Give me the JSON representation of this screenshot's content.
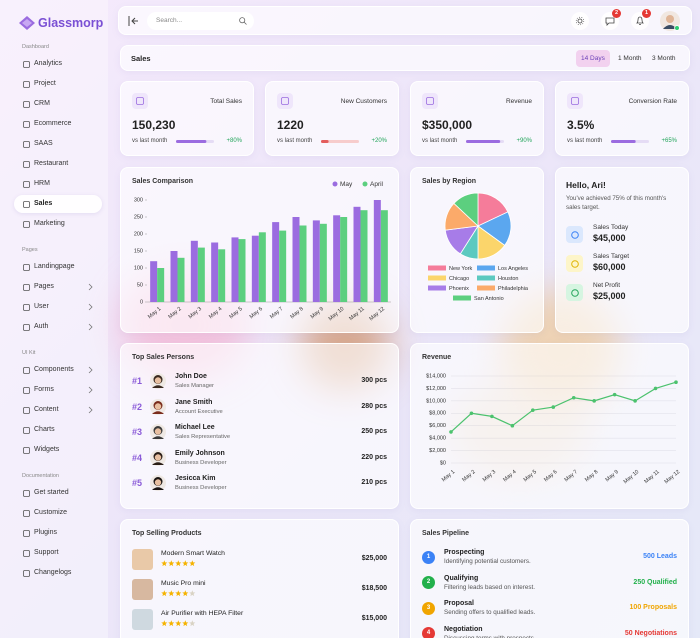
{
  "brand": "Glassmorp",
  "sidebar": {
    "sections": [
      {
        "title": "Dashboard",
        "items": [
          {
            "label": "Analytics"
          },
          {
            "label": "Project"
          },
          {
            "label": "CRM"
          },
          {
            "label": "Ecommerce"
          },
          {
            "label": "SAAS"
          },
          {
            "label": "Restaurant"
          },
          {
            "label": "HRM"
          },
          {
            "label": "Sales",
            "active": true
          },
          {
            "label": "Marketing"
          }
        ]
      },
      {
        "title": "Pages",
        "items": [
          {
            "label": "Landingpage"
          },
          {
            "label": "Pages",
            "expandable": true
          },
          {
            "label": "User",
            "expandable": true
          },
          {
            "label": "Auth",
            "expandable": true
          }
        ]
      },
      {
        "title": "UI Kit",
        "items": [
          {
            "label": "Components",
            "expandable": true
          },
          {
            "label": "Forms",
            "expandable": true
          },
          {
            "label": "Content",
            "expandable": true
          },
          {
            "label": "Charts"
          },
          {
            "label": "Widgets"
          }
        ]
      },
      {
        "title": "Documentation",
        "items": [
          {
            "label": "Get started"
          },
          {
            "label": "Customize"
          },
          {
            "label": "Plugins"
          },
          {
            "label": "Support"
          },
          {
            "label": "Changelogs"
          }
        ]
      }
    ]
  },
  "topbar": {
    "search_placeholder": "Search...",
    "badges": {
      "messages": 2,
      "alerts": 1
    }
  },
  "page_header": {
    "title": "Sales",
    "ranges": [
      "14 Days",
      "1 Month",
      "3 Month"
    ],
    "active_range": 0
  },
  "kpis": [
    {
      "title": "Total Sales",
      "value": "150,230",
      "caption": "vs last month",
      "change": "+80%",
      "progress": 80,
      "color": "#9b6ce0",
      "track": "#e5dcf5"
    },
    {
      "title": "New Customers",
      "value": "1220",
      "caption": "vs last month",
      "change": "+20%",
      "progress": 20,
      "color": "#e35d5d",
      "track": "#f7cccc"
    },
    {
      "title": "Revenue",
      "value": "$350,000",
      "caption": "vs last month",
      "change": "+90%",
      "progress": 90,
      "color": "#9b6ce0",
      "track": "#e5dcf5"
    },
    {
      "title": "Conversion Rate",
      "value": "3.5%",
      "caption": "vs last month",
      "change": "+65%",
      "progress": 65,
      "color": "#9b6ce0",
      "track": "#e5dcf5"
    }
  ],
  "sales_comparison": {
    "type": "bar",
    "title": "Sales Comparison",
    "categories": [
      "May 1",
      "May 2",
      "May 3",
      "May 4",
      "May 5",
      "May 6",
      "May 7",
      "May 8",
      "May 9",
      "May 10",
      "May 11",
      "May 12"
    ],
    "series": [
      {
        "name": "May",
        "color": "#9b6ce0",
        "values": [
          120,
          150,
          180,
          175,
          190,
          195,
          235,
          250,
          240,
          255,
          280,
          300
        ]
      },
      {
        "name": "April",
        "color": "#5ccf7f",
        "values": [
          100,
          130,
          160,
          155,
          185,
          205,
          210,
          225,
          230,
          250,
          270,
          270
        ]
      }
    ],
    "ylim": [
      0,
      300
    ],
    "yticks": [
      0,
      50,
      100,
      150,
      200,
      250,
      300
    ]
  },
  "sales_by_region": {
    "type": "pie",
    "title": "Sales by Region",
    "categories": [
      "New York",
      "Los Angeles",
      "Chicago",
      "Houston",
      "Phoenix",
      "Philadelphia",
      "San Antonio"
    ],
    "values": [
      18,
      17,
      15,
      9,
      14,
      14,
      13
    ],
    "colors": [
      "#f57c9a",
      "#5ba7ef",
      "#fbd56b",
      "#5cc9c0",
      "#a77ce8",
      "#fbaa6a",
      "#5ccf7f"
    ]
  },
  "greeting": {
    "title": "Hello, Ari!",
    "message": "You've achieved 75% of this month's sales target.",
    "stats": [
      {
        "label": "Sales Today",
        "value": "$45,000",
        "color": "#3b82f6",
        "bg": "#dbe8fd"
      },
      {
        "label": "Sales Target",
        "value": "$60,000",
        "color": "#e0b400",
        "bg": "#fdf5c9"
      },
      {
        "label": "Net Profit",
        "value": "$25,000",
        "color": "#22a55a",
        "bg": "#d6f5e1"
      }
    ]
  },
  "top_sales_persons": {
    "title": "Top Sales Persons",
    "rows": [
      {
        "rank": "#1",
        "name": "John Doe",
        "role": "Sales Manager",
        "sales": "300 pcs"
      },
      {
        "rank": "#2",
        "name": "Jane Smith",
        "role": "Account Executive",
        "sales": "280 pcs"
      },
      {
        "rank": "#3",
        "name": "Michael Lee",
        "role": "Sales Representative",
        "sales": "250 pcs"
      },
      {
        "rank": "#4",
        "name": "Emily Johnson",
        "role": "Business Developer",
        "sales": "220 pcs"
      },
      {
        "rank": "#5",
        "name": "Jesicca Kim",
        "role": "Business Developer",
        "sales": "210 pcs"
      }
    ]
  },
  "revenue": {
    "type": "line",
    "title": "Revenue",
    "categories": [
      "May 1",
      "May 2",
      "May 3",
      "May 4",
      "May 5",
      "May 6",
      "May 7",
      "May 8",
      "May 9",
      "May 10",
      "May 11",
      "May 12"
    ],
    "values": [
      5000,
      8000,
      7500,
      6000,
      8500,
      9000,
      10500,
      10000,
      11000,
      10000,
      12000,
      13000
    ],
    "color": "#4cc26e",
    "ylim": [
      0,
      14000
    ],
    "yticks": [
      {
        "value": 0,
        "label": "$0"
      },
      {
        "value": 2000,
        "label": "$2,000"
      },
      {
        "value": 4000,
        "label": "$4,000"
      },
      {
        "value": 6000,
        "label": "$6,000"
      },
      {
        "value": 8000,
        "label": "$8,000"
      },
      {
        "value": 10000,
        "label": "$10,000"
      },
      {
        "value": 12000,
        "label": "$12,000"
      },
      {
        "value": 14000,
        "label": "$14,000"
      }
    ],
    "grid": true
  },
  "top_selling_products": {
    "title": "Top Selling Products",
    "rows": [
      {
        "name": "Modern Smart Watch",
        "rating": 5,
        "price": "$25,000"
      },
      {
        "name": "Music Pro mini",
        "rating": 4,
        "price": "$18,500"
      },
      {
        "name": "Air Purifier with HEPA Filter",
        "rating": 4,
        "price": "$15,000"
      }
    ]
  },
  "sales_pipeline": {
    "title": "Sales Pipeline",
    "rows": [
      {
        "step": "1",
        "stage": "Prospecting",
        "description": "Identifying potential customers.",
        "count": "500 Leads",
        "color": "#3b82f6"
      },
      {
        "step": "2",
        "stage": "Qualifying",
        "description": "Filtering leads based on interest.",
        "count": "250 Qualified",
        "color": "#22b04b"
      },
      {
        "step": "3",
        "stage": "Proposal",
        "description": "Sending offers to qualified leads.",
        "count": "100 Proposals",
        "color": "#f0a500"
      },
      {
        "step": "4",
        "stage": "Negotiation",
        "description": "Discussing terms with prospects",
        "count": "50 Negotiations",
        "color": "#e53935"
      }
    ]
  }
}
